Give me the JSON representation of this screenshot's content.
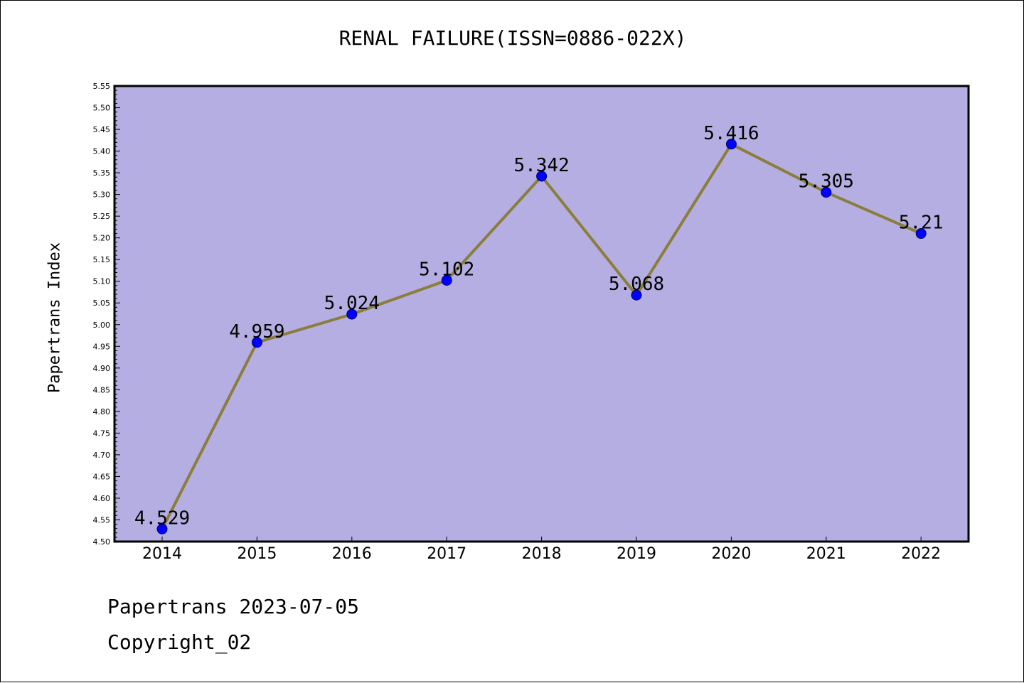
{
  "chart_data": {
    "type": "line",
    "title": "RENAL FAILURE(ISSN=0886-022X)",
    "xlabel": "",
    "ylabel": "Papertrans Index",
    "categories": [
      "2014",
      "2015",
      "2016",
      "2017",
      "2018",
      "2019",
      "2020",
      "2021",
      "2022"
    ],
    "series": [
      {
        "values": [
          4.529,
          4.959,
          5.024,
          5.102,
          5.342,
          5.068,
          5.416,
          5.305,
          5.21
        ],
        "labels": [
          "4.529",
          "4.959",
          "5.024",
          "5.102",
          "5.342",
          "5.068",
          "5.416",
          "5.305",
          "5.21"
        ]
      }
    ],
    "ylim": [
      4.5,
      5.55
    ],
    "yticks": [
      "4.50",
      "4.55",
      "4.60",
      "4.65",
      "4.70",
      "4.75",
      "4.80",
      "4.85",
      "4.90",
      "4.95",
      "5.00",
      "5.05",
      "5.10",
      "5.15",
      "5.20",
      "5.25",
      "5.30",
      "5.35",
      "5.40",
      "5.45",
      "5.50",
      "5.55"
    ],
    "grid": false,
    "colors": {
      "plot_background": "#b4aee2",
      "line": "#8b7d3a",
      "marker": "#0000ff"
    }
  },
  "footer": {
    "date_text": "Papertrans 2023-07-05",
    "copyright_text": "Copyright_02"
  }
}
